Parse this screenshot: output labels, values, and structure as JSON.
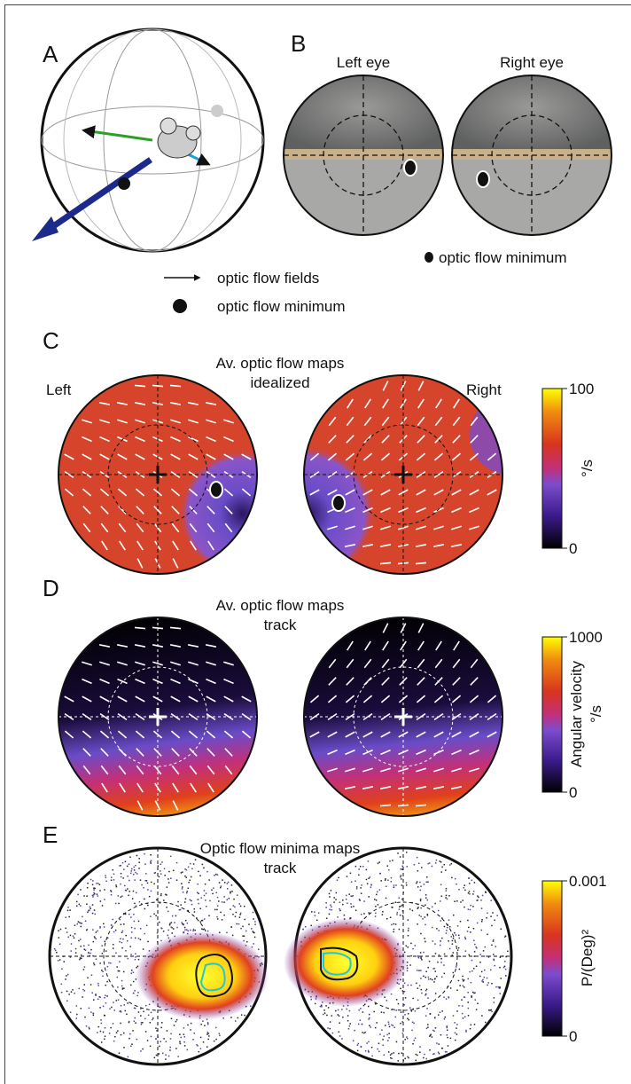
{
  "panels": {
    "A": {
      "label": "A",
      "legend": [
        "optic flow fields",
        "optic flow minimum"
      ]
    },
    "B": {
      "label": "B",
      "left": "Left eye",
      "right": "Right eye",
      "legend": "optic flow minimum"
    },
    "C": {
      "label": "C",
      "title": [
        "Av. optic flow maps",
        "idealized"
      ],
      "left": "Left",
      "right": "Right",
      "colorbar": {
        "max": 100,
        "min": 0,
        "unit": "°/s"
      }
    },
    "D": {
      "label": "D",
      "title": [
        "Av. optic flow maps",
        "track"
      ],
      "colorbar": {
        "max": 1000,
        "min": 0,
        "label": "Angular velocity",
        "unit": "°/s"
      }
    },
    "E": {
      "label": "E",
      "title": [
        "Optic flow minima maps",
        "track"
      ],
      "colorbar": {
        "max": 0.001,
        "min": 0,
        "unit": "P/(Deg)²"
      }
    }
  }
}
